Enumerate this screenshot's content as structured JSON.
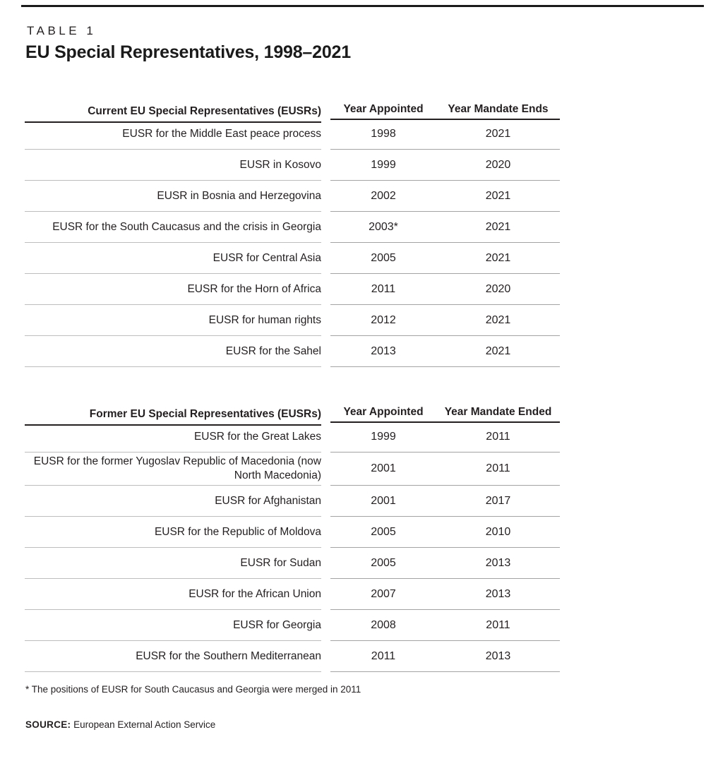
{
  "page": {
    "table_label": "TABLE 1",
    "title": "EU Special Representatives, 1998–2021",
    "footnote": "* The positions of EUSR for South Caucasus and Georgia were merged in 2011",
    "source_label": "SOURCE:",
    "source_text": "European External Action Service"
  },
  "colors": {
    "text": "#231f20",
    "header_rule": "#231f20",
    "top_rule": "#1a1a1a",
    "row_separator_left": "#bdbdbd",
    "row_separator_right": "#a3a3a3",
    "background": "#ffffff"
  },
  "current_table": {
    "headers": {
      "name": "Current EU Special Representatives (EUSRs)",
      "appointed": "Year Appointed",
      "ends": "Year Mandate Ends"
    },
    "rows": [
      {
        "name": "EUSR for the Middle East peace process",
        "appointed": "1998",
        "ends": "2021"
      },
      {
        "name": "EUSR in Kosovo",
        "appointed": "1999",
        "ends": "2020"
      },
      {
        "name": "EUSR in Bosnia and Herzegovina",
        "appointed": "2002",
        "ends": "2021"
      },
      {
        "name": "EUSR for the South Caucasus and the crisis in Georgia",
        "appointed": "2003*",
        "ends": "2021"
      },
      {
        "name": "EUSR for Central Asia",
        "appointed": "2005",
        "ends": "2021"
      },
      {
        "name": "EUSR for the Horn of Africa",
        "appointed": "2011",
        "ends": "2020"
      },
      {
        "name": "EUSR for human rights",
        "appointed": "2012",
        "ends": "2021"
      },
      {
        "name": "EUSR for the Sahel",
        "appointed": "2013",
        "ends": "2021"
      }
    ]
  },
  "former_table": {
    "headers": {
      "name": "Former EU Special Representatives (EUSRs)",
      "appointed": "Year Appointed",
      "ends": "Year Mandate Ended"
    },
    "rows": [
      {
        "name": "EUSR for the Great Lakes",
        "appointed": "1999",
        "ends": "2011"
      },
      {
        "name": "EUSR for the former Yugoslav Republic of Macedonia (now North Macedonia)",
        "appointed": "2001",
        "ends": "2011"
      },
      {
        "name": "EUSR for Afghanistan",
        "appointed": "2001",
        "ends": "2017"
      },
      {
        "name": "EUSR for the Republic of Moldova",
        "appointed": "2005",
        "ends": "2010"
      },
      {
        "name": "EUSR for Sudan",
        "appointed": "2005",
        "ends": "2013"
      },
      {
        "name": "EUSR for the African Union",
        "appointed": "2007",
        "ends": "2013"
      },
      {
        "name": "EUSR for Georgia",
        "appointed": "2008",
        "ends": "2011"
      },
      {
        "name": "EUSR for the Southern Mediterranean",
        "appointed": "2011",
        "ends": "2013"
      }
    ]
  }
}
